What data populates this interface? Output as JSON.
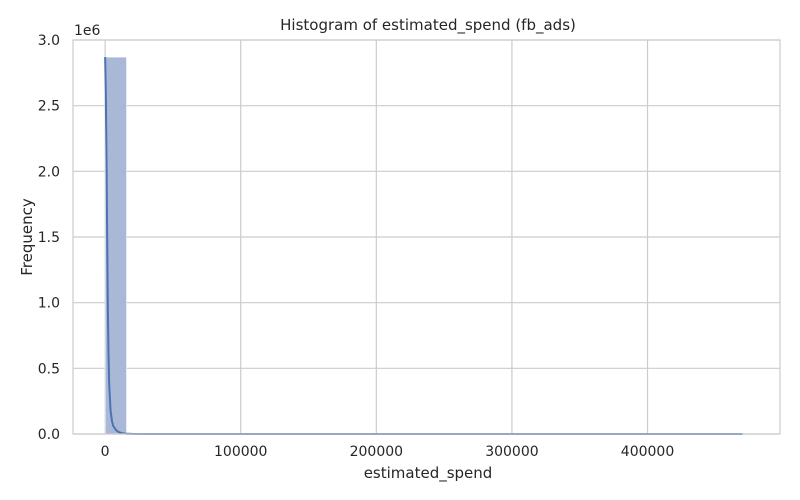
{
  "chart_data": {
    "type": "bar",
    "title": "Histogram of estimated_spend (fb_ads)",
    "xlabel": "estimated_spend",
    "ylabel": "Frequency",
    "scale_label": "1e6",
    "xlim": [
      -23700,
      497700
    ],
    "ylim": [
      0,
      3000000
    ],
    "grid": true,
    "x_ticks": [
      {
        "value": 0,
        "label": "0"
      },
      {
        "value": 100000,
        "label": "100000"
      },
      {
        "value": 200000,
        "label": "200000"
      },
      {
        "value": 300000,
        "label": "300000"
      },
      {
        "value": 400000,
        "label": "400000"
      }
    ],
    "y_ticks": [
      {
        "value": 0,
        "label": "0.0"
      },
      {
        "value": 500000,
        "label": "0.5"
      },
      {
        "value": 1000000,
        "label": "1.0"
      },
      {
        "value": 1500000,
        "label": "1.5"
      },
      {
        "value": 2000000,
        "label": "2.0"
      },
      {
        "value": 2500000,
        "label": "2.5"
      },
      {
        "value": 3000000,
        "label": "3.0"
      }
    ],
    "bins": [
      {
        "x0": 0,
        "x1": 15800,
        "count": 2870000
      },
      {
        "x0": 15800,
        "x1": 31600,
        "count": 2000
      },
      {
        "x0": 31600,
        "x1": 47400,
        "count": 1000
      },
      {
        "x0": 47400,
        "x1": 63200,
        "count": 800
      },
      {
        "x0": 63200,
        "x1": 79000,
        "count": 500
      },
      {
        "x0": 79000,
        "x1": 94800,
        "count": 300
      }
    ],
    "kde": {
      "x": [
        0,
        500,
        1000,
        1500,
        2000,
        2500,
        3000,
        4000,
        5000,
        6000,
        8000,
        10000,
        12000,
        14000,
        16000,
        20000,
        30000,
        50000,
        100000,
        200000,
        300000,
        400000,
        470000
      ],
      "y": [
        2870000,
        2600000,
        2100000,
        1500000,
        950000,
        600000,
        380000,
        180000,
        100000,
        60000,
        30000,
        15000,
        8000,
        4000,
        2000,
        800,
        300,
        100,
        50,
        30,
        20,
        10,
        5
      ]
    },
    "colors": {
      "bar_fill": "#a5b4d6",
      "bar_stroke": "#ffffff",
      "kde_line": "#4c72b0",
      "grid": "#cccccc",
      "text": "#262626"
    }
  }
}
